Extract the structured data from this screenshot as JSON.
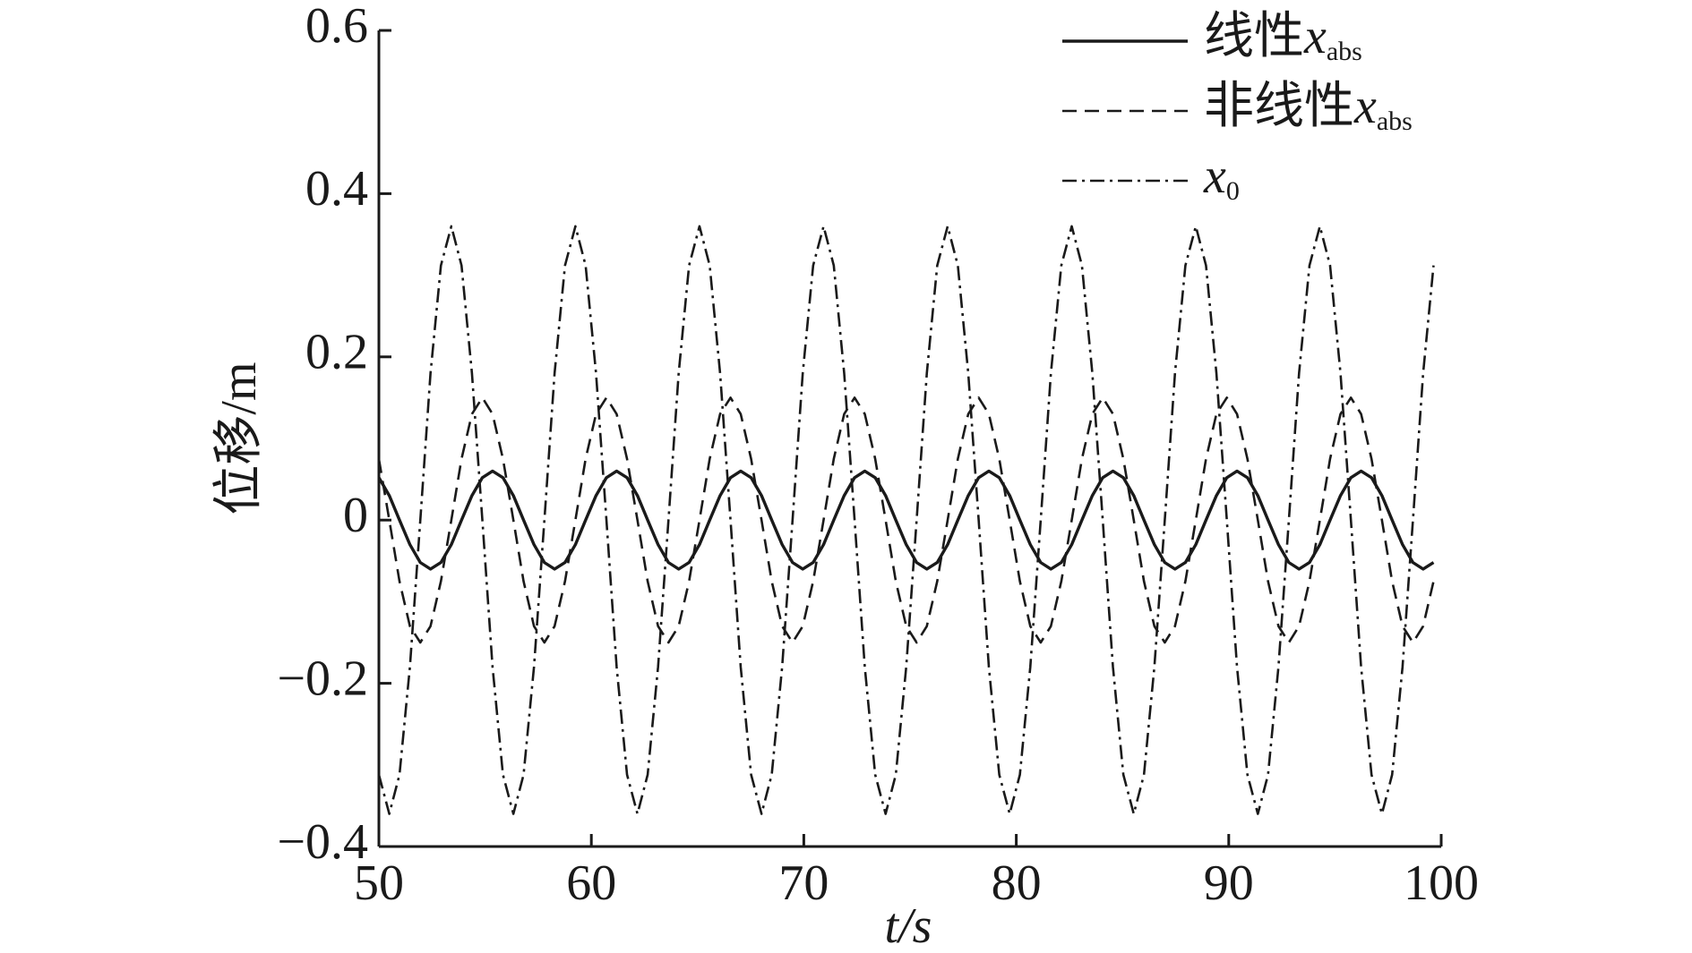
{
  "chart_data": {
    "type": "line",
    "xlabel": "t/s",
    "ylabel": "位移/m",
    "x": [
      50.0,
      50.49,
      50.97,
      51.46,
      51.95,
      52.43,
      52.92,
      53.41,
      53.89,
      54.38,
      54.87,
      55.35,
      55.84,
      56.33,
      56.81,
      57.3,
      57.79,
      58.27,
      58.76,
      59.25,
      59.73,
      60.22,
      60.71,
      61.19,
      61.68,
      62.17,
      62.65,
      63.14,
      63.63,
      64.11,
      64.6,
      65.09,
      65.57,
      66.06,
      66.55,
      67.03,
      67.52,
      68.01,
      68.49,
      68.98,
      69.47,
      69.95,
      70.44,
      70.93,
      71.41,
      71.9,
      72.39,
      72.87,
      73.36,
      73.85,
      74.33,
      74.82,
      75.31,
      75.79,
      76.28,
      76.77,
      77.25,
      77.74,
      78.23,
      78.71,
      79.2,
      79.69,
      80.17,
      80.66,
      81.15,
      81.63,
      82.12,
      82.61,
      83.09,
      83.58,
      84.07,
      84.55,
      85.04,
      85.53,
      86.01,
      86.5,
      86.99,
      87.47,
      87.96,
      88.45,
      88.93,
      89.42,
      89.91,
      90.39,
      90.88,
      91.37,
      91.85,
      92.34,
      92.83,
      93.31,
      93.8,
      94.29,
      94.77,
      95.26,
      95.75,
      96.23,
      96.72,
      97.21,
      97.69,
      98.18,
      98.67,
      99.15,
      99.64
    ],
    "series": [
      {
        "name": "线性xabs",
        "color": "#1a1a1a",
        "dash": "solid",
        "values": [
          0.052,
          0.03,
          0,
          -0.03,
          -0.052,
          -0.06,
          -0.052,
          -0.03,
          0,
          0.03,
          0.052,
          0.06,
          0.052,
          0.03,
          0,
          -0.03,
          -0.052,
          -0.06,
          -0.052,
          -0.03,
          0,
          0.03,
          0.052,
          0.06,
          0.052,
          0.03,
          0,
          -0.03,
          -0.052,
          -0.06,
          -0.052,
          -0.03,
          0,
          0.03,
          0.052,
          0.06,
          0.052,
          0.03,
          0,
          -0.03,
          -0.052,
          -0.06,
          -0.052,
          -0.03,
          0,
          0.03,
          0.052,
          0.06,
          0.052,
          0.03,
          0,
          -0.03,
          -0.052,
          -0.06,
          -0.052,
          -0.03,
          0,
          0.03,
          0.052,
          0.06,
          0.052,
          0.03,
          0,
          -0.03,
          -0.052,
          -0.06,
          -0.052,
          -0.03,
          0,
          0.03,
          0.052,
          0.06,
          0.052,
          0.03,
          0,
          -0.03,
          -0.052,
          -0.06,
          -0.052,
          -0.03,
          0,
          0.03,
          0.052,
          0.06,
          0.052,
          0.03,
          0,
          -0.03,
          -0.052,
          -0.06,
          -0.052,
          -0.03,
          0,
          0.03,
          0.052,
          0.06,
          0.052,
          0.03,
          0,
          -0.03,
          -0.052,
          -0.06,
          -0.052
        ]
      },
      {
        "name": "非线性xabs",
        "color": "#1a1a1a",
        "dash": "dashed",
        "values": [
          0.075,
          0,
          -0.075,
          -0.13,
          -0.15,
          -0.13,
          -0.075,
          0,
          0.075,
          0.13,
          0.15,
          0.13,
          0.075,
          0,
          -0.075,
          -0.13,
          -0.15,
          -0.13,
          -0.075,
          0,
          0.075,
          0.13,
          0.15,
          0.13,
          0.075,
          0,
          -0.075,
          -0.13,
          -0.15,
          -0.13,
          -0.075,
          0,
          0.075,
          0.13,
          0.15,
          0.13,
          0.075,
          0,
          -0.075,
          -0.13,
          -0.15,
          -0.13,
          -0.075,
          0,
          0.075,
          0.13,
          0.15,
          0.13,
          0.075,
          0,
          -0.075,
          -0.13,
          -0.15,
          -0.13,
          -0.075,
          0,
          0.075,
          0.13,
          0.15,
          0.13,
          0.075,
          0,
          -0.075,
          -0.13,
          -0.15,
          -0.13,
          -0.075,
          0,
          0.075,
          0.13,
          0.15,
          0.13,
          0.075,
          0,
          -0.075,
          -0.13,
          -0.15,
          -0.13,
          -0.075,
          0,
          0.075,
          0.13,
          0.15,
          0.13,
          0.075,
          0,
          -0.075,
          -0.13,
          -0.15,
          -0.13,
          -0.075,
          0,
          0.075,
          0.13,
          0.15,
          0.13,
          0.075,
          0,
          -0.075,
          -0.13,
          -0.15,
          -0.13,
          -0.075
        ]
      },
      {
        "name": "x0",
        "color": "#1a1a1a",
        "dash": "dashdot",
        "values": [
          -0.312,
          -0.36,
          -0.312,
          -0.18,
          0,
          0.18,
          0.312,
          0.36,
          0.312,
          0.18,
          0,
          -0.18,
          -0.312,
          -0.36,
          -0.312,
          -0.18,
          0,
          0.18,
          0.312,
          0.36,
          0.312,
          0.18,
          0,
          -0.18,
          -0.312,
          -0.36,
          -0.312,
          -0.18,
          0,
          0.18,
          0.312,
          0.36,
          0.312,
          0.18,
          0,
          -0.18,
          -0.312,
          -0.36,
          -0.312,
          -0.18,
          0,
          0.18,
          0.312,
          0.36,
          0.312,
          0.18,
          0,
          -0.18,
          -0.312,
          -0.36,
          -0.312,
          -0.18,
          0,
          0.18,
          0.312,
          0.36,
          0.312,
          0.18,
          0,
          -0.18,
          -0.312,
          -0.36,
          -0.312,
          -0.18,
          0,
          0.18,
          0.312,
          0.36,
          0.312,
          0.18,
          0,
          -0.18,
          -0.312,
          -0.36,
          -0.312,
          -0.18,
          0,
          0.18,
          0.312,
          0.36,
          0.312,
          0.18,
          0,
          -0.18,
          -0.312,
          -0.36,
          -0.312,
          -0.18,
          0,
          0.18,
          0.312,
          0.36,
          0.312,
          0.18,
          0,
          -0.18,
          -0.312,
          -0.36,
          -0.312,
          -0.18,
          0,
          0.18,
          0.312
        ]
      }
    ],
    "xlim": [
      50,
      100
    ],
    "xticks": [
      50,
      60,
      70,
      80,
      90,
      100
    ],
    "ylim": [
      -0.4,
      0.6
    ],
    "yticks": [
      {
        "value": -0.4,
        "label": "−0.4"
      },
      {
        "value": -0.2,
        "label": "−0.2"
      },
      0,
      0.2,
      0.4,
      0.6
    ],
    "grid": false,
    "legend": "upper right"
  }
}
